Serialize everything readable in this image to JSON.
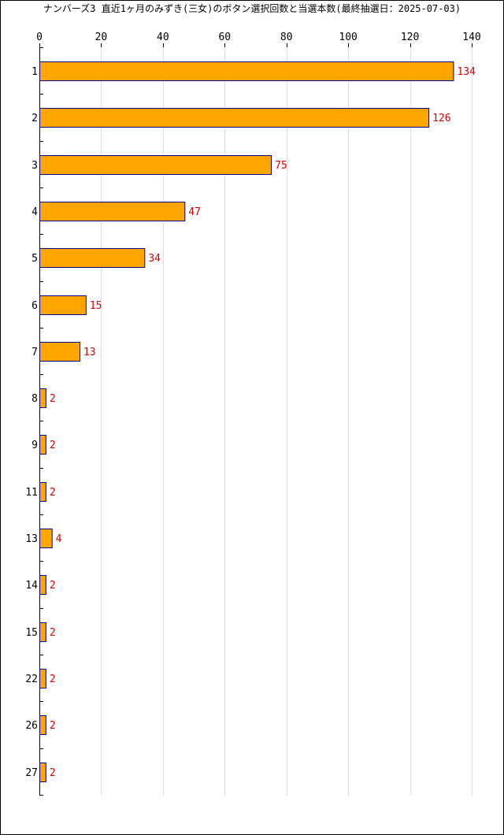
{
  "chart_data": {
    "type": "bar",
    "orientation": "horizontal",
    "title": "ナンバーズ3 直近1ヶ月のみずき(三女)のボタン選択回数と当選本数(最終抽選日：2025-07-03)",
    "xlabel": "",
    "ylabel": "",
    "xlim": [
      0,
      140
    ],
    "x_ticks": [
      0,
      20,
      40,
      60,
      80,
      100,
      120,
      140
    ],
    "x_axis_position": "top",
    "grid": true,
    "legend": "none",
    "categories": [
      "1",
      "2",
      "3",
      "4",
      "5",
      "6",
      "7",
      "8",
      "9",
      "11",
      "13",
      "14",
      "15",
      "22",
      "26",
      "27"
    ],
    "values": [
      134,
      126,
      75,
      47,
      34,
      15,
      13,
      2,
      2,
      2,
      4,
      2,
      2,
      2,
      2,
      2
    ],
    "colors": {
      "bar_fill": "#FFA500",
      "bar_stroke": "#00008B",
      "value_label": "#DD0000",
      "grid": "#DDDDDD",
      "axis": "#000000"
    }
  }
}
